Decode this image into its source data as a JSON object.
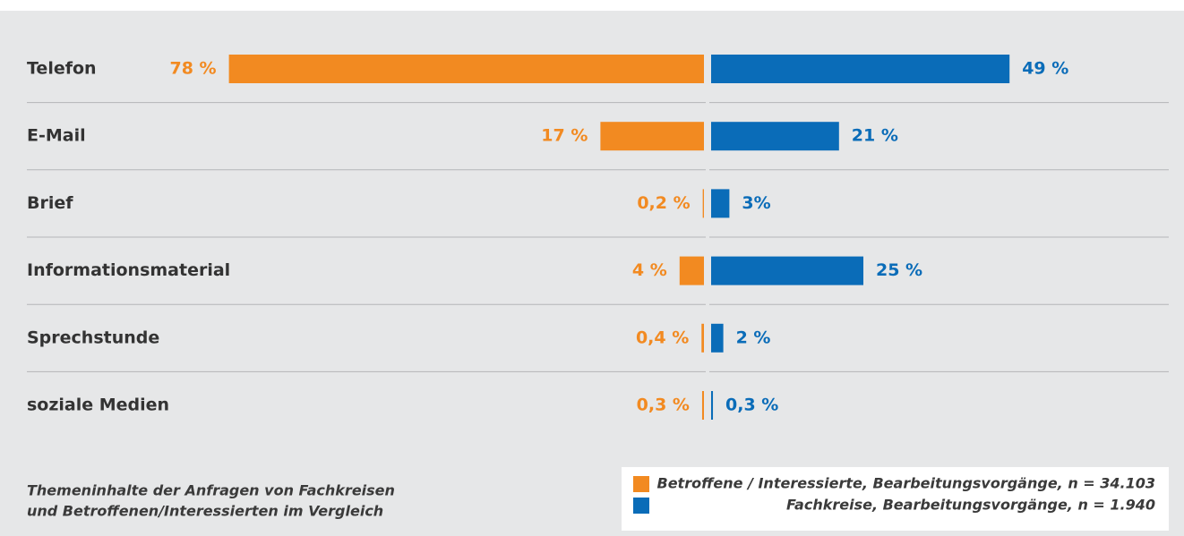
{
  "chart_data": {
    "type": "butterfly-bar",
    "categories": [
      "Telefon",
      "E-Mail",
      "Brief",
      "Informationsmaterial",
      "Sprechstunde",
      "soziale Medien"
    ],
    "series": [
      {
        "name": "Betroffene / Interessierte, Bearbeitungsvorgänge, n = 34.103",
        "color": "#f28a21",
        "values": [
          78,
          17,
          0.2,
          4,
          0.4,
          0.3
        ],
        "value_labels": [
          "78 %",
          "17 %",
          "0,2 %",
          "4 %",
          "0,4 %",
          "0,3 %"
        ]
      },
      {
        "name": "Fachkreise, Bearbeitungsvorgänge, n = 1.940",
        "color": "#0a6cb8",
        "values": [
          49,
          21,
          3,
          25,
          2,
          0.3
        ],
        "value_labels": [
          "49 %",
          "21 %",
          "3%",
          "25 %",
          "2 %",
          "0,3 %"
        ]
      }
    ],
    "caption": [
      "Themeninhalte der Anfragen von Fachkreisen",
      "und Betroffenen/Interessierten im Vergleich"
    ]
  }
}
